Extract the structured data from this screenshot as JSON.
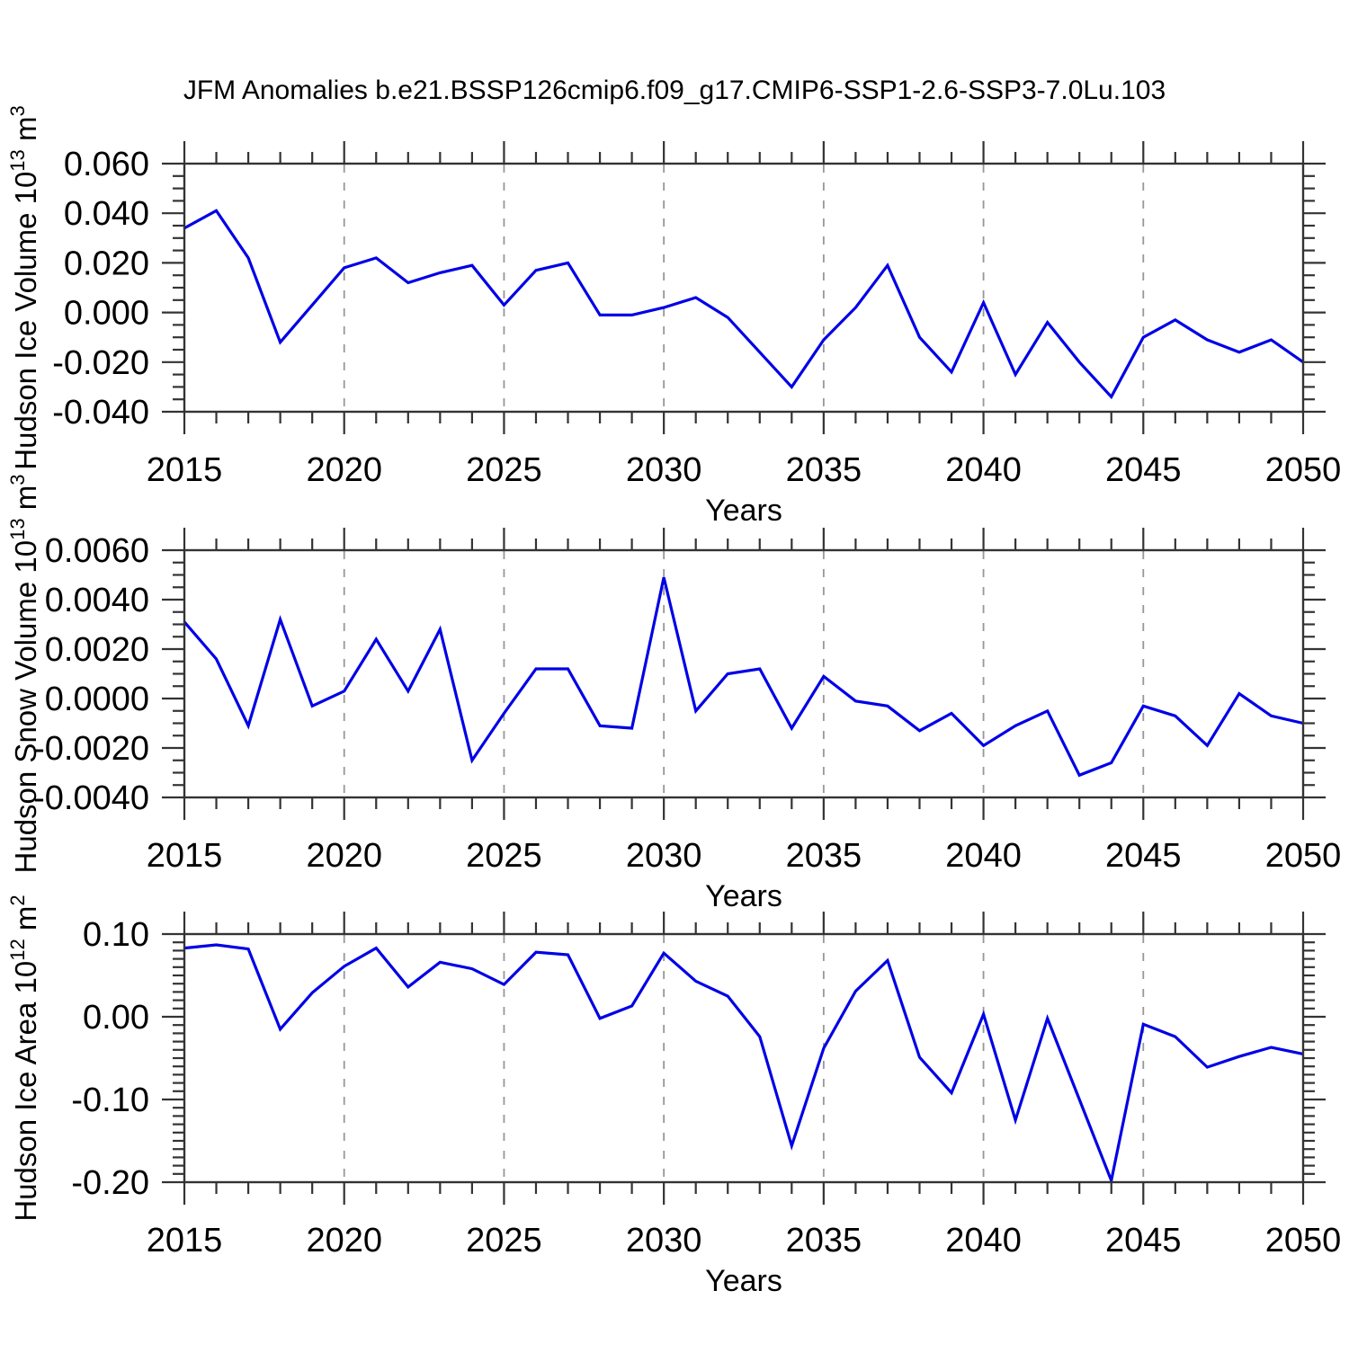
{
  "title": "JFM Anomalies b.e21.BSSP126cmip6.f09_g17.CMIP6-SSP1-2.6-SSP3-7.0Lu.103",
  "chart_data": {
    "type": "line",
    "title": "JFM Anomalies b.e21.BSSP126cmip6.f09_g17.CMIP6-SSP1-2.6-SSP3-7.0Lu.103",
    "x_label": "Years",
    "x": [
      2015,
      2016,
      2017,
      2018,
      2019,
      2020,
      2021,
      2022,
      2023,
      2024,
      2025,
      2026,
      2027,
      2028,
      2029,
      2030,
      2031,
      2032,
      2033,
      2034,
      2035,
      2036,
      2037,
      2038,
      2039,
      2040,
      2041,
      2042,
      2043,
      2044,
      2045,
      2046,
      2047,
      2048,
      2049,
      2050
    ],
    "x_major_ticks": [
      2015,
      2020,
      2025,
      2030,
      2035,
      2040,
      2045,
      2050
    ],
    "x_minor_step": 1,
    "grid_years": [
      2020,
      2025,
      2030,
      2035,
      2040,
      2045
    ],
    "grid_style": "dashed-vertical",
    "legend": "none",
    "line_color": "#0000e6",
    "axis_color": "#333333",
    "grid_color": "#979797",
    "panels": [
      {
        "name": "hudson-ice-volume",
        "ylabel": "Hudson Ice Volume 10^13 m^3",
        "ylim": [
          -0.04,
          0.06
        ],
        "ytick_major": 0.02,
        "ytick_minor": 0.005,
        "ydecimals": 3,
        "values": [
          0.034,
          0.041,
          0.022,
          -0.012,
          0.003,
          0.018,
          0.022,
          0.012,
          0.016,
          0.019,
          0.003,
          0.017,
          0.02,
          -0.001,
          -0.001,
          0.002,
          0.006,
          -0.002,
          -0.016,
          -0.03,
          -0.011,
          0.002,
          0.019,
          -0.01,
          -0.024,
          0.004,
          -0.025,
          -0.004,
          -0.02,
          -0.034,
          -0.01,
          -0.003,
          -0.011,
          -0.016,
          -0.011,
          -0.02
        ]
      },
      {
        "name": "hudson-snow-volume",
        "ylabel": "Hudson Snow Volume 10^13 m^3",
        "ylim": [
          -0.004,
          0.006
        ],
        "ytick_major": 0.002,
        "ytick_minor": 0.0005,
        "ydecimals": 4,
        "values": [
          0.0031,
          0.0016,
          -0.0011,
          0.0032,
          -0.0003,
          0.0003,
          0.0024,
          0.0003,
          0.0028,
          -0.0025,
          -0.0006,
          0.0012,
          0.0012,
          -0.0011,
          -0.0012,
          0.0049,
          -0.0005,
          0.001,
          0.0012,
          -0.0012,
          0.0009,
          -0.0001,
          -0.0003,
          -0.0013,
          -0.0006,
          -0.0019,
          -0.0011,
          -0.0005,
          -0.0031,
          -0.0026,
          -0.0003,
          -0.0007,
          -0.0019,
          0.0002,
          -0.0007,
          -0.001
        ]
      },
      {
        "name": "hudson-ice-area",
        "ylabel": "Hudson Ice Area 10^12 m^2",
        "ylim": [
          -0.2,
          0.1
        ],
        "ytick_major": 0.1,
        "ytick_minor": 0.01,
        "ydecimals": 2,
        "values": [
          0.083,
          0.087,
          0.082,
          -0.015,
          0.029,
          0.061,
          0.083,
          0.036,
          0.066,
          0.058,
          0.039,
          0.078,
          0.075,
          -0.002,
          0.013,
          0.077,
          0.043,
          0.025,
          -0.024,
          -0.156,
          -0.038,
          0.031,
          0.068,
          -0.049,
          -0.092,
          0.003,
          -0.125,
          -0.002,
          -0.1,
          -0.198,
          -0.009,
          -0.024,
          -0.061,
          -0.048,
          -0.037,
          -0.045
        ]
      }
    ]
  }
}
